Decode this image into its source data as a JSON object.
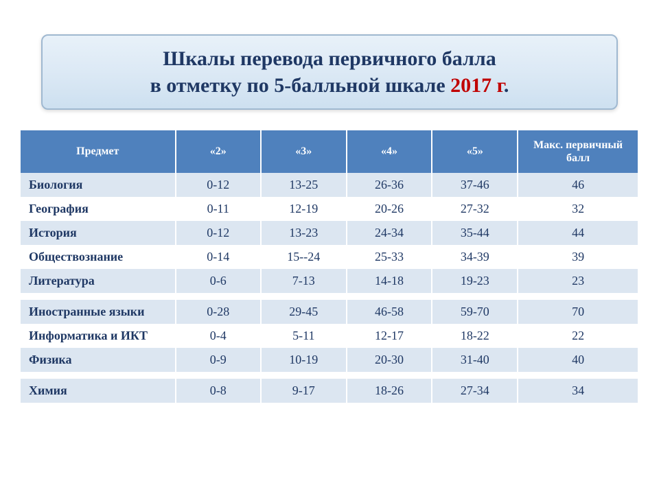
{
  "title": {
    "line1": "Шкалы перевода первичного балла",
    "line2_part1": "в отметку по 5-балльной шкале ",
    "year": "2017 г",
    "line2_part2": "."
  },
  "table": {
    "columns": [
      "Предмет",
      "«2»",
      "«3»",
      "«4»",
      "«5»",
      "Макс. первичный балл"
    ],
    "groups": [
      {
        "rows": [
          {
            "subject": "Биология",
            "g2": "0-12",
            "g3": "13-25",
            "g4": "26-36",
            "g5": "37-46",
            "max": "46"
          },
          {
            "subject": "География",
            "g2": "0-11",
            "g3": "12-19",
            "g4": "20-26",
            "g5": "27-32",
            "max": "32"
          },
          {
            "subject": "История",
            "g2": "0-12",
            "g3": "13-23",
            "g4": "24-34",
            "g5": "35-44",
            "max": "44"
          },
          {
            "subject": "Обществознание",
            "g2": "0-14",
            "g3": "15--24",
            "g4": "25-33",
            "g5": "34-39",
            "max": "39"
          },
          {
            "subject": "Литература",
            "g2": "0-6",
            "g3": "7-13",
            "g4": "14-18",
            "g5": "19-23",
            "max": "23"
          }
        ]
      },
      {
        "rows": [
          {
            "subject": "Иностранные языки",
            "g2": "0-28",
            "g3": "29-45",
            "g4": "46-58",
            "g5": "59-70",
            "max": "70"
          },
          {
            "subject": "Информатика и ИКТ",
            "g2": "0-4",
            "g3": "5-11",
            "g4": "12-17",
            "g5": "18-22",
            "max": "22"
          },
          {
            "subject": "Физика",
            "g2": "0-9",
            "g3": "10-19",
            "g4": "20-30",
            "g5": "31-40",
            "max": "40"
          }
        ]
      },
      {
        "rows": [
          {
            "subject": "Химия",
            "g2": "0-8",
            "g3": "9-17",
            "g4": "18-26",
            "g5": "27-34",
            "max": "34"
          }
        ]
      }
    ],
    "header_bg": "#4f81bd",
    "header_color": "#ffffff",
    "row_odd_bg": "#dce6f1",
    "row_even_bg": "#ffffff",
    "text_color": "#1f3864",
    "title_year_color": "#c00000"
  }
}
